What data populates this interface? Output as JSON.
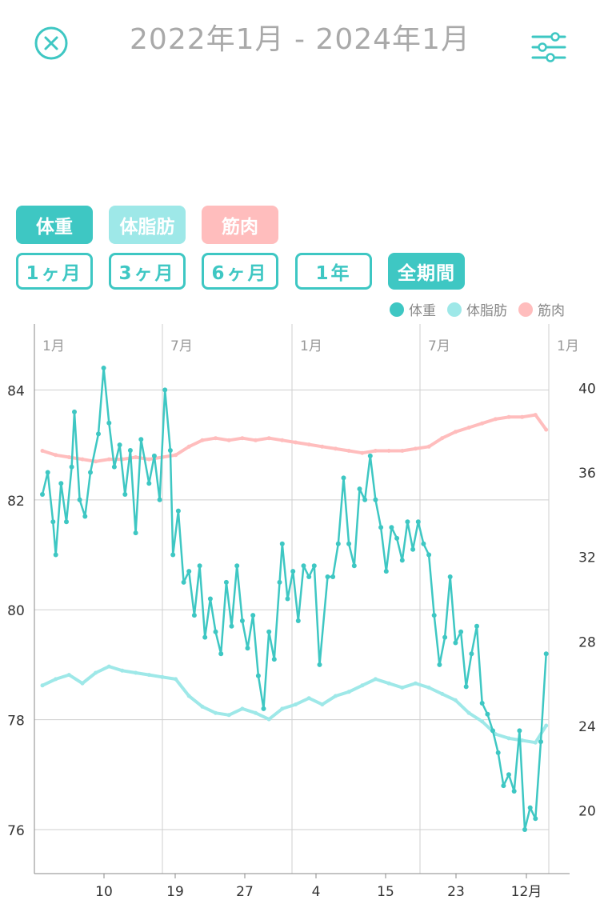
{
  "header": {
    "title": "2022年1月 - 2024年1月",
    "close_icon": "close-circle-icon",
    "filter_icon": "sliders-icon"
  },
  "metrics": [
    {
      "label": "体重",
      "color": "#3ec7c3"
    },
    {
      "label": "体脂肪",
      "color": "#9ee8e8"
    },
    {
      "label": "筋肉",
      "color": "#ffbdbd"
    }
  ],
  "periods": [
    {
      "label": "1ヶ月",
      "active": false
    },
    {
      "label": "3ヶ月",
      "active": false
    },
    {
      "label": "6ヶ月",
      "active": false
    },
    {
      "label": "1年",
      "active": false
    },
    {
      "label": "全期間",
      "active": true
    }
  ],
  "legend": [
    "体重",
    "体脂肪",
    "筋肉"
  ],
  "chart_data": {
    "type": "line",
    "left_axis": {
      "ticks": [
        76,
        78,
        80,
        82,
        84
      ],
      "range": [
        75.2,
        85.2
      ]
    },
    "right_axis": {
      "ticks": [
        20,
        24,
        28,
        32,
        36,
        40
      ],
      "range": [
        17,
        43
      ]
    },
    "top_month_labels": [
      "1月",
      "7月",
      "1月",
      "7月",
      "1月"
    ],
    "bottom_labels": [
      "10",
      "19",
      "27",
      "4",
      "15",
      "23",
      "12月"
    ],
    "series": [
      {
        "name": "体重",
        "axis": "left",
        "color": "#3ec7c3",
        "points": [
          [
            0,
            82.1
          ],
          [
            0.02,
            82.5
          ],
          [
            0.04,
            81.6
          ],
          [
            0.05,
            81.0
          ],
          [
            0.07,
            82.3
          ],
          [
            0.09,
            81.6
          ],
          [
            0.11,
            82.6
          ],
          [
            0.12,
            83.6
          ],
          [
            0.14,
            82.0
          ],
          [
            0.16,
            81.7
          ],
          [
            0.18,
            82.5
          ],
          [
            0.21,
            83.2
          ],
          [
            0.23,
            84.4
          ],
          [
            0.25,
            83.4
          ],
          [
            0.27,
            82.6
          ],
          [
            0.29,
            83.0
          ],
          [
            0.31,
            82.1
          ],
          [
            0.33,
            82.9
          ],
          [
            0.35,
            81.4
          ],
          [
            0.37,
            83.1
          ],
          [
            0.4,
            82.3
          ],
          [
            0.42,
            82.8
          ],
          [
            0.44,
            82.0
          ],
          [
            0.46,
            84.0
          ],
          [
            0.48,
            82.9
          ],
          [
            0.49,
            81.0
          ],
          [
            0.51,
            81.8
          ],
          [
            0.53,
            80.5
          ],
          [
            0.55,
            80.7
          ],
          [
            0.57,
            79.9
          ],
          [
            0.59,
            80.8
          ],
          [
            0.61,
            79.5
          ],
          [
            0.63,
            80.2
          ],
          [
            0.65,
            79.6
          ],
          [
            0.67,
            79.2
          ],
          [
            0.69,
            80.5
          ],
          [
            0.71,
            79.7
          ],
          [
            0.73,
            80.8
          ],
          [
            0.75,
            79.8
          ],
          [
            0.77,
            79.3
          ],
          [
            0.79,
            79.9
          ],
          [
            0.81,
            78.8
          ],
          [
            0.83,
            78.2
          ],
          [
            0.85,
            79.6
          ],
          [
            0.87,
            79.1
          ],
          [
            0.89,
            80.5
          ],
          [
            0.9,
            81.2
          ],
          [
            0.92,
            80.2
          ],
          [
            0.94,
            80.7
          ],
          [
            0.96,
            79.8
          ],
          [
            0.98,
            80.8
          ],
          [
            1.0,
            80.6
          ],
          [
            1.02,
            80.8
          ],
          [
            1.04,
            79.0
          ],
          [
            1.07,
            80.6
          ],
          [
            1.09,
            80.6
          ],
          [
            1.11,
            81.2
          ],
          [
            1.13,
            82.4
          ],
          [
            1.15,
            81.2
          ],
          [
            1.17,
            80.8
          ],
          [
            1.19,
            82.2
          ],
          [
            1.21,
            82.0
          ],
          [
            1.23,
            82.8
          ],
          [
            1.25,
            82.0
          ],
          [
            1.27,
            81.5
          ],
          [
            1.29,
            80.7
          ],
          [
            1.31,
            81.5
          ],
          [
            1.33,
            81.3
          ],
          [
            1.35,
            80.9
          ],
          [
            1.37,
            81.6
          ],
          [
            1.39,
            81.1
          ],
          [
            1.41,
            81.6
          ],
          [
            1.43,
            81.2
          ],
          [
            1.45,
            81.0
          ],
          [
            1.47,
            79.9
          ],
          [
            1.49,
            79.0
          ],
          [
            1.51,
            79.5
          ],
          [
            1.53,
            80.6
          ],
          [
            1.55,
            79.4
          ],
          [
            1.57,
            79.6
          ],
          [
            1.59,
            78.6
          ],
          [
            1.61,
            79.2
          ],
          [
            1.63,
            79.7
          ],
          [
            1.65,
            78.3
          ],
          [
            1.67,
            78.1
          ],
          [
            1.69,
            77.8
          ],
          [
            1.71,
            77.4
          ],
          [
            1.73,
            76.8
          ],
          [
            1.75,
            77.0
          ],
          [
            1.77,
            76.7
          ],
          [
            1.79,
            77.8
          ],
          [
            1.81,
            76.0
          ],
          [
            1.83,
            76.4
          ],
          [
            1.85,
            76.2
          ],
          [
            1.87,
            77.6
          ],
          [
            1.89,
            79.2
          ]
        ]
      },
      {
        "name": "体脂肪",
        "axis": "right",
        "color": "#9ee8e8",
        "points": [
          [
            0,
            25.9
          ],
          [
            0.05,
            26.2
          ],
          [
            0.1,
            26.4
          ],
          [
            0.15,
            26.0
          ],
          [
            0.2,
            26.5
          ],
          [
            0.25,
            26.8
          ],
          [
            0.3,
            26.6
          ],
          [
            0.35,
            26.5
          ],
          [
            0.4,
            26.4
          ],
          [
            0.45,
            26.3
          ],
          [
            0.5,
            26.2
          ],
          [
            0.55,
            25.4
          ],
          [
            0.6,
            24.9
          ],
          [
            0.65,
            24.6
          ],
          [
            0.7,
            24.5
          ],
          [
            0.75,
            24.8
          ],
          [
            0.8,
            24.6
          ],
          [
            0.85,
            24.3
          ],
          [
            0.9,
            24.8
          ],
          [
            0.95,
            25.0
          ],
          [
            1.0,
            25.3
          ],
          [
            1.05,
            25.0
          ],
          [
            1.1,
            25.4
          ],
          [
            1.15,
            25.6
          ],
          [
            1.2,
            25.9
          ],
          [
            1.25,
            26.2
          ],
          [
            1.3,
            26.0
          ],
          [
            1.35,
            25.8
          ],
          [
            1.4,
            26.0
          ],
          [
            1.45,
            25.8
          ],
          [
            1.5,
            25.5
          ],
          [
            1.55,
            25.2
          ],
          [
            1.6,
            24.6
          ],
          [
            1.65,
            24.2
          ],
          [
            1.7,
            23.6
          ],
          [
            1.75,
            23.4
          ],
          [
            1.8,
            23.3
          ],
          [
            1.85,
            23.2
          ],
          [
            1.89,
            24.0
          ]
        ]
      },
      {
        "name": "筋肉",
        "axis": "right",
        "color": "#ffbdbd",
        "points": [
          [
            0,
            37.0
          ],
          [
            0.05,
            36.8
          ],
          [
            0.1,
            36.7
          ],
          [
            0.15,
            36.6
          ],
          [
            0.2,
            36.5
          ],
          [
            0.25,
            36.6
          ],
          [
            0.3,
            36.6
          ],
          [
            0.35,
            36.7
          ],
          [
            0.4,
            36.6
          ],
          [
            0.45,
            36.7
          ],
          [
            0.5,
            36.8
          ],
          [
            0.55,
            37.2
          ],
          [
            0.6,
            37.5
          ],
          [
            0.65,
            37.6
          ],
          [
            0.7,
            37.5
          ],
          [
            0.75,
            37.6
          ],
          [
            0.8,
            37.5
          ],
          [
            0.85,
            37.6
          ],
          [
            0.9,
            37.5
          ],
          [
            0.95,
            37.4
          ],
          [
            1.0,
            37.3
          ],
          [
            1.05,
            37.2
          ],
          [
            1.1,
            37.1
          ],
          [
            1.15,
            37.0
          ],
          [
            1.2,
            36.9
          ],
          [
            1.25,
            37.0
          ],
          [
            1.3,
            37.0
          ],
          [
            1.35,
            37.0
          ],
          [
            1.4,
            37.1
          ],
          [
            1.45,
            37.2
          ],
          [
            1.5,
            37.6
          ],
          [
            1.55,
            37.9
          ],
          [
            1.6,
            38.1
          ],
          [
            1.65,
            38.3
          ],
          [
            1.7,
            38.5
          ],
          [
            1.75,
            38.6
          ],
          [
            1.8,
            38.6
          ],
          [
            1.85,
            38.7
          ],
          [
            1.89,
            38.0
          ]
        ]
      }
    ]
  }
}
